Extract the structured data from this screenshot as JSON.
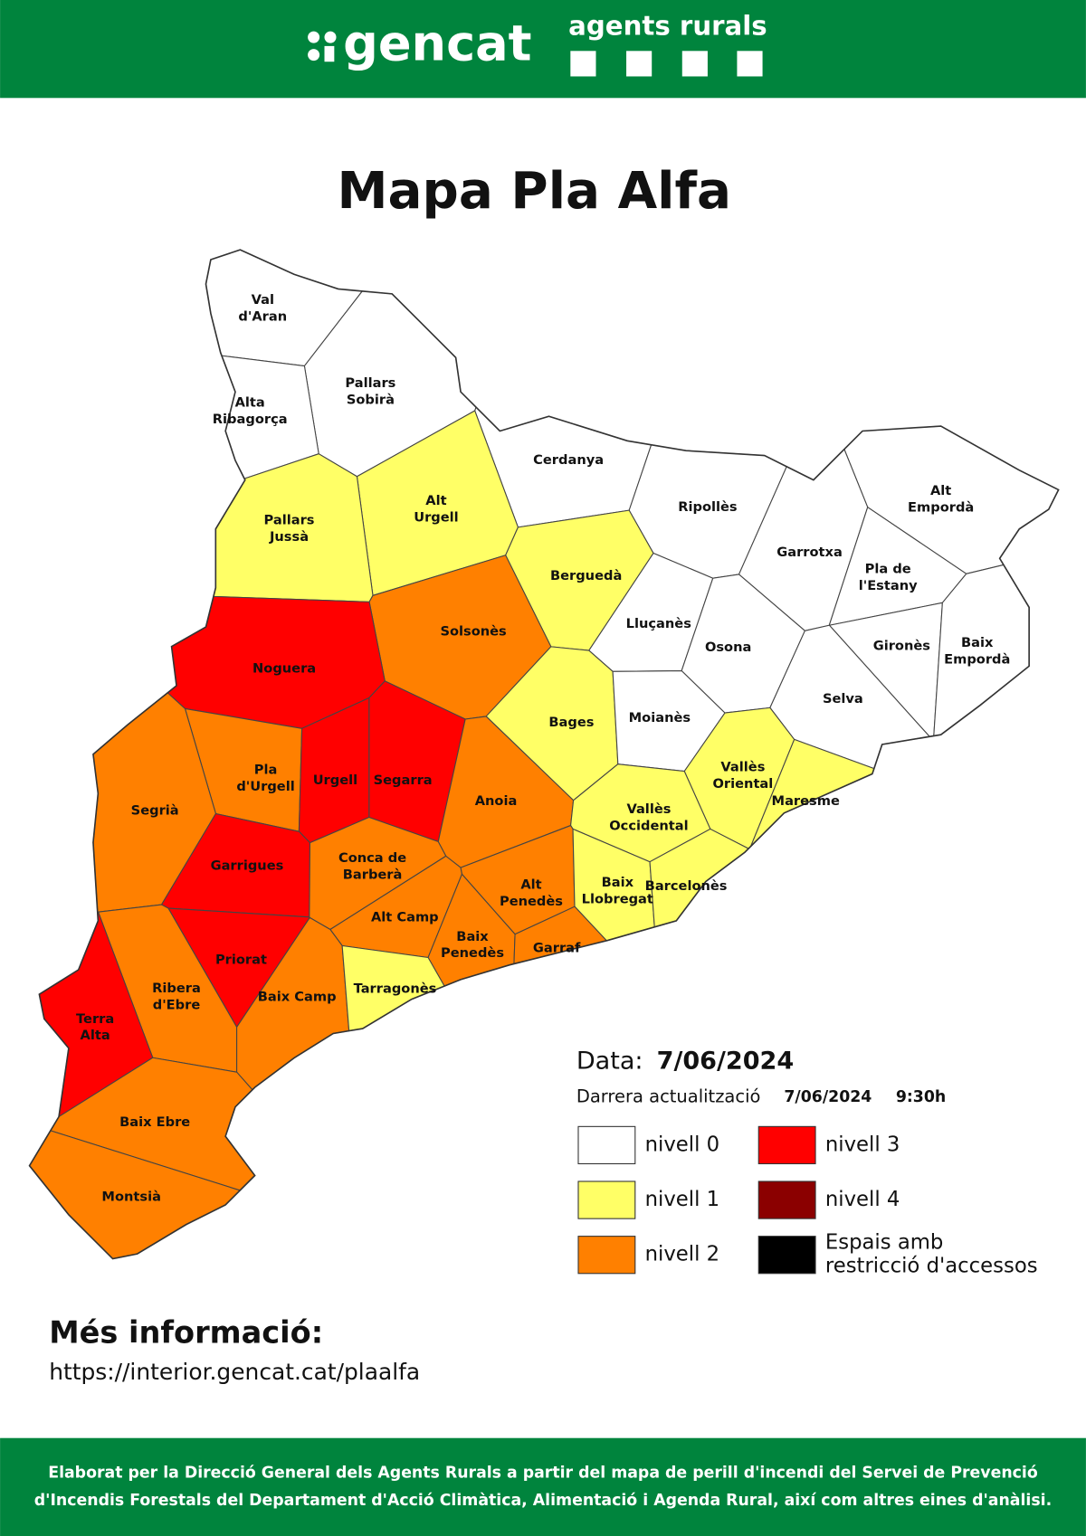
{
  "header": {
    "logo": "gencat",
    "brand": "agents rurals"
  },
  "title": "Mapa Pla Alfa",
  "map": {
    "regions": [
      {
        "label": [
          "Val",
          "d'Aran"
        ],
        "level": 0
      },
      {
        "label": [
          "Pallars",
          "Sobirà"
        ],
        "level": 0
      },
      {
        "label": [
          "Alta",
          "Ribagorça"
        ],
        "level": 0
      },
      {
        "label": [
          "Cerdanya"
        ],
        "level": 0
      },
      {
        "label": [
          "Alt",
          "Urgell"
        ],
        "level": 1
      },
      {
        "label": [
          "Pallars",
          "Jussà"
        ],
        "level": 1
      },
      {
        "label": [
          "Ripollès"
        ],
        "level": 0
      },
      {
        "label": [
          "Alt",
          "Empordà"
        ],
        "level": 0
      },
      {
        "label": [
          "Garrotxa"
        ],
        "level": 0
      },
      {
        "label": [
          "Pla de",
          "l'Estany"
        ],
        "level": 0
      },
      {
        "label": [
          "Berguedà"
        ],
        "level": 1
      },
      {
        "label": [
          "Solsonès"
        ],
        "level": 2
      },
      {
        "label": [
          "Lluçanès"
        ],
        "level": 0
      },
      {
        "label": [
          "Osona"
        ],
        "level": 0
      },
      {
        "label": [
          "Gironès"
        ],
        "level": 0
      },
      {
        "label": [
          "Baix",
          "Empordà"
        ],
        "level": 0
      },
      {
        "label": [
          "Noguera"
        ],
        "level": 3
      },
      {
        "label": [
          "Bages"
        ],
        "level": 1
      },
      {
        "label": [
          "Moianès"
        ],
        "level": 0
      },
      {
        "label": [
          "Selva"
        ],
        "level": 0
      },
      {
        "label": [
          "Segarra"
        ],
        "level": 3
      },
      {
        "label": [
          "Pla",
          "d'Urgell"
        ],
        "level": 2
      },
      {
        "label": [
          "Urgell"
        ],
        "level": 3
      },
      {
        "label": [
          "Vallès",
          "Oriental"
        ],
        "level": 1
      },
      {
        "label": [
          "Maresme"
        ],
        "level": 1
      },
      {
        "label": [
          "Segrià"
        ],
        "level": 2
      },
      {
        "label": [
          "Anoia"
        ],
        "level": 2
      },
      {
        "label": [
          "Vallès",
          "Occidental"
        ],
        "level": 1
      },
      {
        "label": [
          "Garrigues"
        ],
        "level": 3
      },
      {
        "label": [
          "Conca de",
          "Barberà"
        ],
        "level": 2
      },
      {
        "label": [
          "Alt",
          "Penedès"
        ],
        "level": 2
      },
      {
        "label": [
          "Baix",
          "Llobregat"
        ],
        "level": 1
      },
      {
        "label": [
          "Barcelonès"
        ],
        "level": 1
      },
      {
        "label": [
          "Alt Camp"
        ],
        "level": 2
      },
      {
        "label": [
          "Baix",
          "Penedès"
        ],
        "level": 2
      },
      {
        "label": [
          "Garraf"
        ],
        "level": 2
      },
      {
        "label": [
          "Priorat"
        ],
        "level": 3
      },
      {
        "label": [
          "Ribera",
          "d'Ebre"
        ],
        "level": 2
      },
      {
        "label": [
          "Baix Camp"
        ],
        "level": 2
      },
      {
        "label": [
          "Tarragonès"
        ],
        "level": 1
      },
      {
        "label": [
          "Terra",
          "Alta"
        ],
        "level": 3
      },
      {
        "label": [
          "Baix Ebre"
        ],
        "level": 2
      },
      {
        "label": [
          "Montsià"
        ],
        "level": 2
      }
    ]
  },
  "legend": {
    "date_label": "Data:",
    "date": "7/06/2024",
    "update_label": "Darrera actualització",
    "update_date": "7/06/2024",
    "update_time": "9:30h",
    "items": [
      {
        "label": [
          "nivell 0"
        ],
        "color": "#ffffff"
      },
      {
        "label": [
          "nivell 1"
        ],
        "color": "#ffff66"
      },
      {
        "label": [
          "nivell 2"
        ],
        "color": "#ff8000"
      },
      {
        "label": [
          "nivell 3"
        ],
        "color": "#ff0000"
      },
      {
        "label": [
          "nivell 4"
        ],
        "color": "#8b0000"
      },
      {
        "label": [
          "Espais amb",
          "restricció d'accessos"
        ],
        "color": "#000000"
      }
    ]
  },
  "info": {
    "heading": "Més informació:",
    "url": "https://interior.gencat.cat/plaalfa"
  },
  "footer": {
    "lines": [
      "Elaborat per la Direcció General dels Agents Rurals a partir del mapa de perill d'incendi del Servei de Prevenció",
      "d'Incendis Forestals del Departament d'Acció Climàtica, Alimentació i Agenda Rural, així com altres eines d'anàlisi."
    ]
  }
}
